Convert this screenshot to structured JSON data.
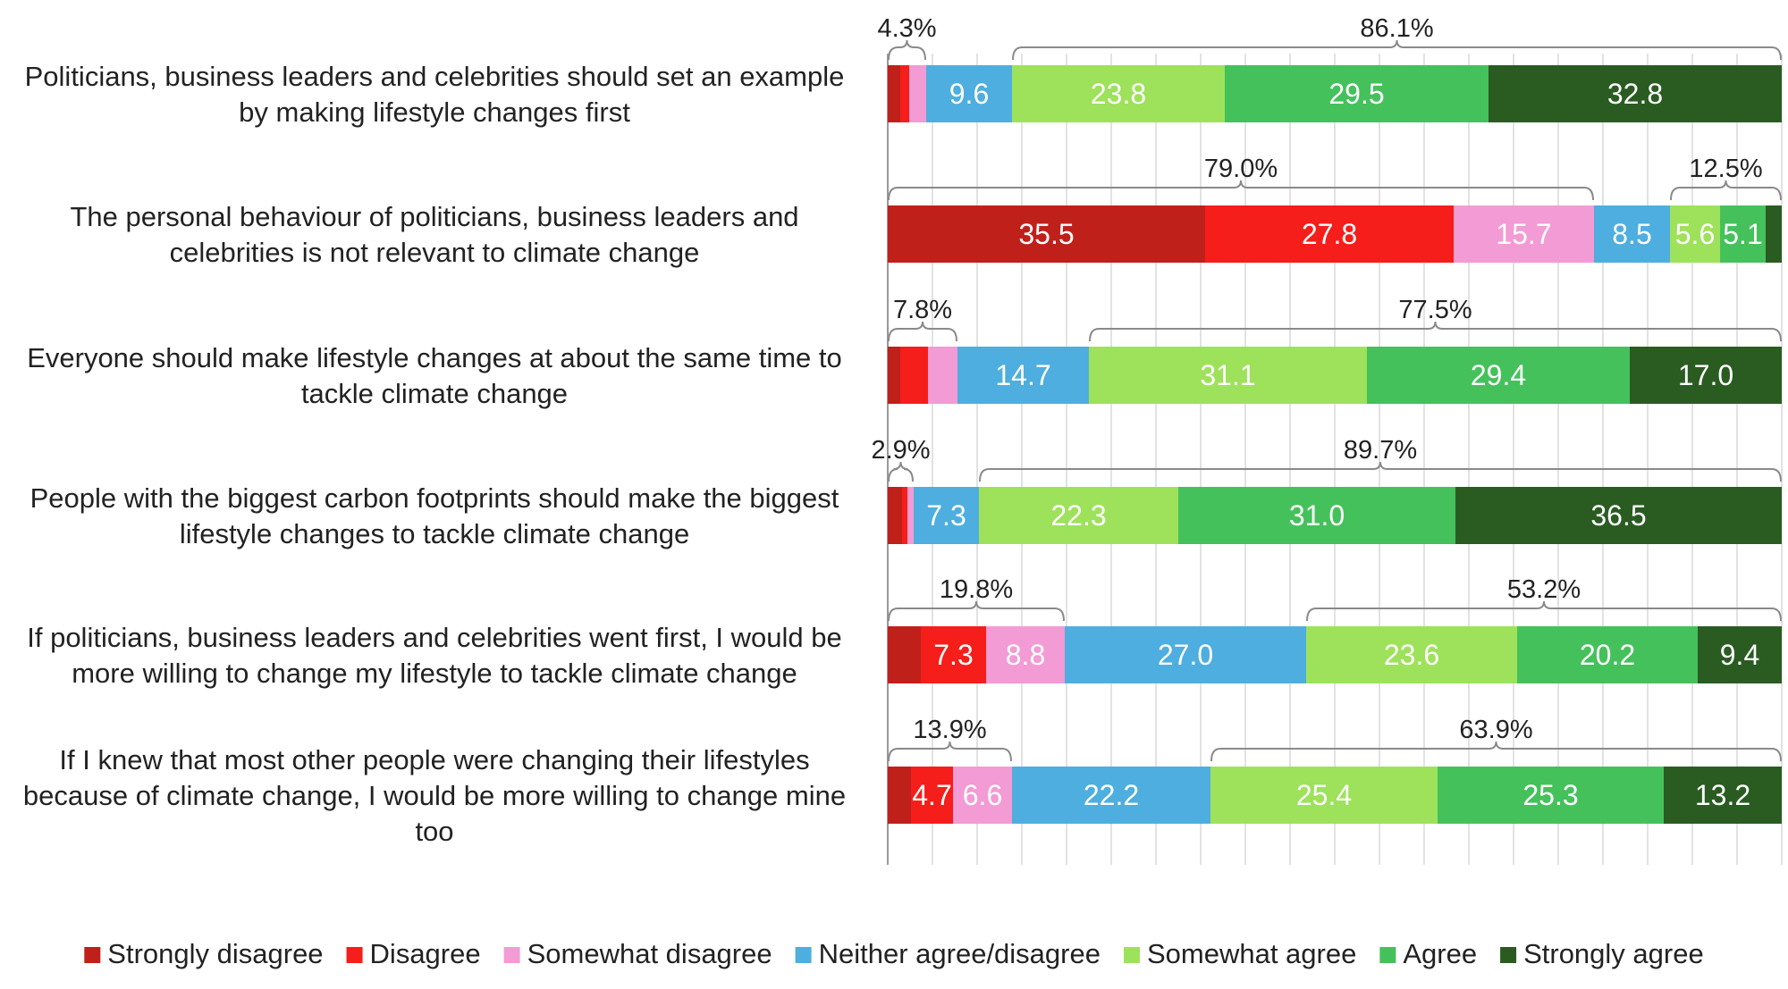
{
  "chart_data": {
    "type": "bar",
    "orientation": "horizontal",
    "stacked": true,
    "value_unit": "%",
    "xlim": [
      0,
      100
    ],
    "grid": true,
    "legend_position": "bottom",
    "categories": [
      "Politicians, business leaders and celebrities should set an example by making lifestyle changes first",
      "The personal behaviour of politicians, business leaders and celebrities is not relevant to climate change",
      "Everyone should make lifestyle changes at about the same time to tackle climate change",
      "People with the biggest carbon footprints should make the biggest lifestyle changes to tackle climate change",
      "If politicians, business leaders and celebrities went first, I would be more willing to change my lifestyle to tackle climate change",
      "If I knew that most other people were changing their lifestyles because of climate change, I would be more willing to change mine too"
    ],
    "category_lines": [
      [
        "Politicians, business leaders and celebrities should set an example",
        "by making lifestyle changes first"
      ],
      [
        "The personal behaviour of politicians, business leaders and",
        "celebrities is not relevant to climate change"
      ],
      [
        "Everyone should make lifestyle changes at about the same time to",
        "tackle climate change"
      ],
      [
        "People with the biggest carbon footprints should make the biggest",
        "lifestyle changes to tackle climate change"
      ],
      [
        "If politicians, business leaders and celebrities went first, I would be",
        "more willing to change my lifestyle to tackle climate change"
      ],
      [
        "If I knew that most other people were changing their lifestyles",
        "because of climate change, I would be more willing to change mine",
        "too"
      ]
    ],
    "series": [
      {
        "name": "Strongly disagree",
        "color": "#c0201a",
        "values": [
          1.4,
          35.5,
          1.4,
          1.6,
          3.7,
          2.6
        ]
      },
      {
        "name": "Disagree",
        "color": "#f51e1a",
        "values": [
          1.0,
          27.8,
          3.1,
          0.6,
          7.3,
          4.7
        ]
      },
      {
        "name": "Somewhat disagree",
        "color": "#f29bd5",
        "values": [
          1.9,
          15.7,
          3.3,
          0.7,
          8.8,
          6.6
        ]
      },
      {
        "name": "Neither agree/disagree",
        "color": "#4eaedf",
        "values": [
          9.6,
          8.5,
          14.7,
          7.3,
          27.0,
          22.2
        ]
      },
      {
        "name": "Somewhat agree",
        "color": "#9de25a",
        "values": [
          23.8,
          5.6,
          31.1,
          22.3,
          23.6,
          25.4
        ]
      },
      {
        "name": "Agree",
        "color": "#45c15b",
        "values": [
          29.5,
          5.1,
          29.4,
          31.0,
          20.2,
          25.3
        ]
      },
      {
        "name": "Strongly agree",
        "color": "#2a5c22",
        "values": [
          32.8,
          1.8,
          17.0,
          36.5,
          9.4,
          13.2
        ]
      }
    ],
    "data_labels": [
      [
        "",
        "",
        "",
        "9.6",
        "23.8",
        "29.5",
        "32.8"
      ],
      [
        "35.5",
        "27.8",
        "15.7",
        "8.5",
        "5.6",
        "5.1",
        ""
      ],
      [
        "",
        "",
        "",
        "14.7",
        "31.1",
        "29.4",
        "17.0"
      ],
      [
        "",
        "",
        "",
        "7.3",
        "22.3",
        "31.0",
        "36.5"
      ],
      [
        "",
        "7.3",
        "8.8",
        "27.0",
        "23.6",
        "20.2",
        "9.4"
      ],
      [
        "",
        "4.7",
        "6.6",
        "22.2",
        "25.4",
        "25.3",
        "13.2"
      ]
    ],
    "bracket_annotations": [
      {
        "row": 0,
        "from_segment": 0,
        "to_segment": 2,
        "label": "4.3%"
      },
      {
        "row": 0,
        "from_segment": 4,
        "to_segment": 6,
        "label": "86.1%"
      },
      {
        "row": 1,
        "from_segment": 0,
        "to_segment": 2,
        "label": "79.0%"
      },
      {
        "row": 1,
        "from_segment": 4,
        "to_segment": 6,
        "label": "12.5%"
      },
      {
        "row": 2,
        "from_segment": 0,
        "to_segment": 2,
        "label": "7.8%"
      },
      {
        "row": 2,
        "from_segment": 4,
        "to_segment": 6,
        "label": "77.5%"
      },
      {
        "row": 3,
        "from_segment": 0,
        "to_segment": 2,
        "label": "2.9%"
      },
      {
        "row": 3,
        "from_segment": 4,
        "to_segment": 6,
        "label": "89.7%"
      },
      {
        "row": 4,
        "from_segment": 0,
        "to_segment": 2,
        "label": "19.8%"
      },
      {
        "row": 4,
        "from_segment": 4,
        "to_segment": 6,
        "label": "53.2%"
      },
      {
        "row": 5,
        "from_segment": 0,
        "to_segment": 2,
        "label": "13.9%"
      },
      {
        "row": 5,
        "from_segment": 4,
        "to_segment": 6,
        "label": "63.9%"
      }
    ]
  }
}
